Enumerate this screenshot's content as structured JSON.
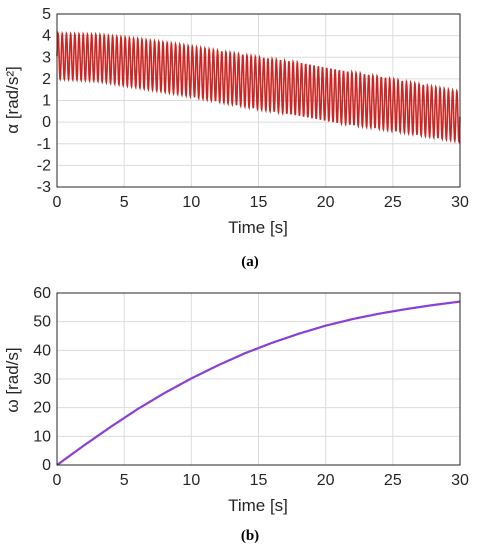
{
  "chart_data": [
    {
      "id": "a",
      "type": "line",
      "caption": "(a)",
      "xlabel": "Time [s]",
      "ylabel": "α [rad/s²]",
      "xlim": [
        0,
        30
      ],
      "ylim": [
        -3,
        5
      ],
      "xticks": [
        "0",
        "5",
        "10",
        "15",
        "20",
        "25",
        "30"
      ],
      "yticks": [
        "-3",
        "-2",
        "-1",
        "0",
        "1",
        "2",
        "3",
        "4",
        "5"
      ],
      "grid": true,
      "series": [
        {
          "color": "#d62020",
          "style": "oscillation",
          "oscillation_frequency_hz": 3.2,
          "x": [
            0,
            3,
            6,
            9,
            12,
            15,
            18,
            21,
            24,
            27,
            30
          ],
          "upper": [
            4.1,
            4.05,
            3.85,
            3.6,
            3.3,
            3.0,
            2.75,
            2.4,
            2.1,
            1.75,
            1.4
          ],
          "lower": [
            2.0,
            1.9,
            1.6,
            1.3,
            0.95,
            0.6,
            0.3,
            -0.05,
            -0.3,
            -0.6,
            -0.9
          ]
        }
      ]
    },
    {
      "id": "b",
      "type": "line",
      "caption": "(b)",
      "xlabel": "Time [s]",
      "ylabel": "ω [rad/s]",
      "xlim": [
        0,
        30
      ],
      "ylim": [
        0,
        60
      ],
      "xticks": [
        "0",
        "5",
        "10",
        "15",
        "20",
        "25",
        "30"
      ],
      "yticks": [
        "0",
        "10",
        "20",
        "30",
        "40",
        "50",
        "60"
      ],
      "grid": true,
      "series": [
        {
          "color": "#8a3fd6",
          "x": [
            0,
            2,
            4,
            6,
            8,
            10,
            12,
            14,
            16,
            18,
            20,
            22,
            24,
            26,
            28,
            30
          ],
          "y": [
            0,
            6.8,
            13.3,
            19.5,
            25.1,
            30.2,
            34.8,
            39.0,
            42.6,
            45.8,
            48.6,
            50.9,
            52.8,
            54.4,
            55.8,
            57.0
          ]
        }
      ]
    }
  ]
}
